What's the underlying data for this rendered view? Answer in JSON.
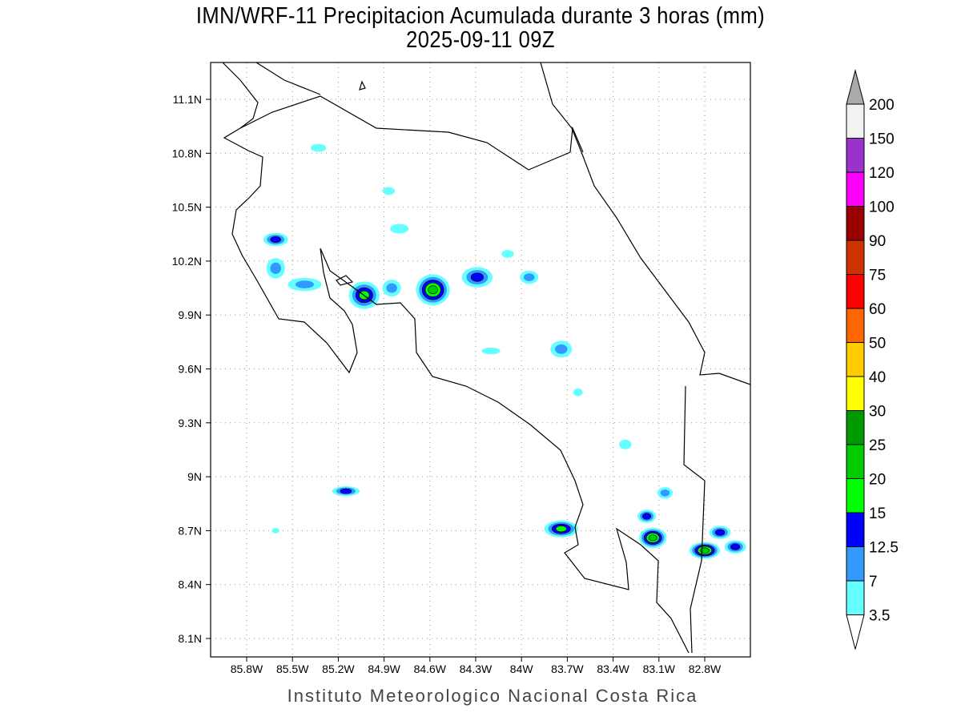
{
  "title": "IMN/WRF-11 Precipitacion Acumulada durante 3 horas (mm)",
  "subtitle": "2025-09-11 09Z",
  "footer": "Instituto Meteorologico Nacional Costa Rica",
  "lon_ticks": [
    "85.8W",
    "85.5W",
    "85.2W",
    "84.9W",
    "84.6W",
    "84.3W",
    "84W",
    "83.7W",
    "83.4W",
    "83.1W",
    "82.8W"
  ],
  "lon_values": [
    85.8,
    85.5,
    85.2,
    84.9,
    84.6,
    84.3,
    84.0,
    83.7,
    83.4,
    83.1,
    82.8
  ],
  "lat_ticks": [
    "11.1N",
    "10.8N",
    "10.5N",
    "10.2N",
    "9.9N",
    "9.6N",
    "9.3N",
    "9N",
    "8.7N",
    "8.4N",
    "8.1N"
  ],
  "lat_values": [
    11.1,
    10.8,
    10.5,
    10.2,
    9.9,
    9.6,
    9.3,
    9.0,
    8.7,
    8.4,
    8.1
  ],
  "colorbar": {
    "labels": [
      "200",
      "150",
      "120",
      "100",
      "90",
      "75",
      "60",
      "50",
      "40",
      "30",
      "25",
      "20",
      "15",
      "12.5",
      "7",
      "3.5"
    ],
    "colors": [
      "#f2f2f2",
      "#9933cc",
      "#ff00ff",
      "#990000",
      "#cc3300",
      "#ff0000",
      "#ff6600",
      "#ffcc00",
      "#ffff00",
      "#009900",
      "#00cc00",
      "#00ff00",
      "#0000ff",
      "#3399ff",
      "#66ffff"
    ],
    "over_color": "#aaaaaa",
    "under_color": "#ffffff"
  },
  "level_colors": [
    "#66ffff",
    "#3399ff",
    "#0000ff",
    "#00ff00",
    "#00cc00"
  ],
  "rain_cells": [
    {
      "lon": 85.03,
      "lat": 10.01,
      "rx": 0.09,
      "ry": 0.07,
      "level": 3
    },
    {
      "lon": 84.58,
      "lat": 10.04,
      "rx": 0.1,
      "ry": 0.08,
      "level": 4
    },
    {
      "lon": 85.61,
      "lat": 10.32,
      "rx": 0.07,
      "ry": 0.03,
      "level": 2
    },
    {
      "lon": 85.42,
      "lat": 10.07,
      "rx": 0.1,
      "ry": 0.03,
      "level": 1
    },
    {
      "lon": 85.61,
      "lat": 10.16,
      "rx": 0.05,
      "ry": 0.05,
      "level": 1
    },
    {
      "lon": 84.29,
      "lat": 10.11,
      "rx": 0.09,
      "ry": 0.05,
      "level": 2
    },
    {
      "lon": 83.95,
      "lat": 10.11,
      "rx": 0.05,
      "ry": 0.03,
      "level": 1
    },
    {
      "lon": 84.8,
      "lat": 10.38,
      "rx": 0.05,
      "ry": 0.02,
      "level": 0
    },
    {
      "lon": 84.87,
      "lat": 10.59,
      "rx": 0.03,
      "ry": 0.015,
      "level": 0
    },
    {
      "lon": 85.33,
      "lat": 10.83,
      "rx": 0.04,
      "ry": 0.015,
      "level": 0
    },
    {
      "lon": 83.74,
      "lat": 9.71,
      "rx": 0.06,
      "ry": 0.04,
      "level": 1
    },
    {
      "lon": 84.2,
      "lat": 9.7,
      "rx": 0.05,
      "ry": 0.012,
      "level": 0
    },
    {
      "lon": 84.09,
      "lat": 10.24,
      "rx": 0.03,
      "ry": 0.015,
      "level": 0
    },
    {
      "lon": 84.85,
      "lat": 10.05,
      "rx": 0.05,
      "ry": 0.04,
      "level": 1
    },
    {
      "lon": 85.15,
      "lat": 8.92,
      "rx": 0.08,
      "ry": 0.02,
      "level": 2
    },
    {
      "lon": 83.74,
      "lat": 8.71,
      "rx": 0.1,
      "ry": 0.04,
      "level": 3
    },
    {
      "lon": 83.18,
      "lat": 8.78,
      "rx": 0.05,
      "ry": 0.03,
      "level": 2
    },
    {
      "lon": 83.14,
      "lat": 8.66,
      "rx": 0.08,
      "ry": 0.05,
      "level": 4
    },
    {
      "lon": 82.8,
      "lat": 8.59,
      "rx": 0.09,
      "ry": 0.04,
      "level": 4
    },
    {
      "lon": 82.7,
      "lat": 8.69,
      "rx": 0.06,
      "ry": 0.03,
      "level": 2
    },
    {
      "lon": 82.6,
      "lat": 8.61,
      "rx": 0.06,
      "ry": 0.03,
      "level": 2
    },
    {
      "lon": 83.06,
      "lat": 8.91,
      "rx": 0.04,
      "ry": 0.025,
      "level": 1
    },
    {
      "lon": 83.32,
      "lat": 9.18,
      "rx": 0.03,
      "ry": 0.02,
      "level": 0
    },
    {
      "lon": 83.63,
      "lat": 9.47,
      "rx": 0.02,
      "ry": 0.015,
      "level": 0
    },
    {
      "lon": 85.61,
      "lat": 8.7,
      "rx": 0.015,
      "ry": 0.008,
      "level": 0
    }
  ]
}
